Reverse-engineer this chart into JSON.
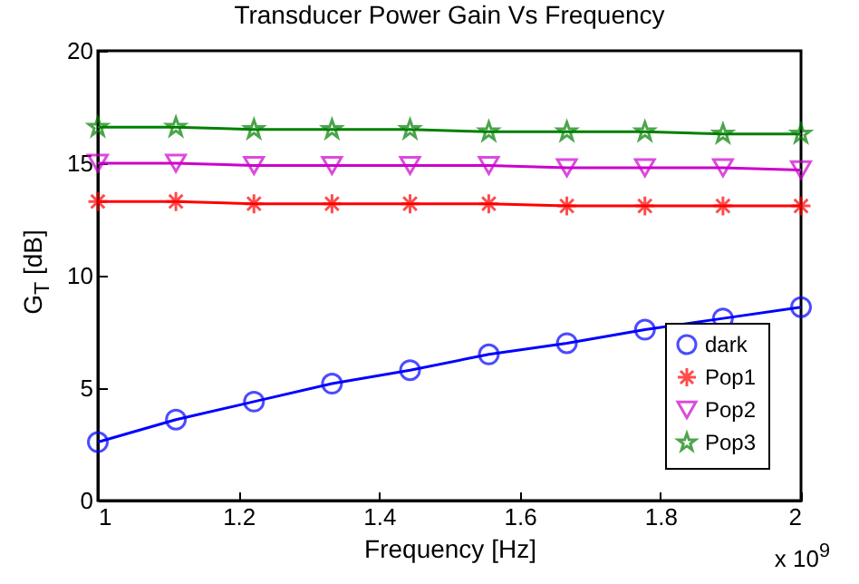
{
  "chart_data": {
    "type": "line",
    "title": "Transducer Power Gain Vs Frequency",
    "xlabel": "Frequency [Hz]",
    "ylabel": "G$_{T}$ [dB]",
    "annotations": [
      "x 10$^{9}$"
    ],
    "x": [
      1,
      1.111,
      1.222,
      1.333,
      1.444,
      1.556,
      1.667,
      1.778,
      1.889,
      2
    ],
    "series": [
      {
        "name": "dark",
        "color": "#0000ff",
        "marker": "circle",
        "values": [
          2.6,
          3.6,
          4.4,
          5.2,
          5.8,
          6.5,
          7.0,
          7.6,
          8.1,
          8.6
        ]
      },
      {
        "name": "Pop1",
        "color": "#ff0000",
        "marker": "cross",
        "values": [
          13.3,
          13.3,
          13.2,
          13.2,
          13.2,
          13.2,
          13.1,
          13.1,
          13.1,
          13.1
        ]
      },
      {
        "name": "Pop2",
        "color": "#cc00cc",
        "marker": "triangle",
        "values": [
          15.0,
          15.0,
          14.9,
          14.9,
          14.9,
          14.9,
          14.8,
          14.8,
          14.8,
          14.7
        ]
      },
      {
        "name": "Pop3",
        "color": "#008000",
        "marker": "star",
        "values": [
          16.6,
          16.6,
          16.5,
          16.5,
          16.5,
          16.4,
          16.4,
          16.4,
          16.3,
          16.3
        ]
      }
    ],
    "xlim": [
      1,
      2
    ],
    "xticks": [
      1,
      1.2,
      1.4,
      1.6,
      1.8,
      2
    ],
    "ylim": [
      0,
      20
    ],
    "yticks": [
      0,
      5,
      10,
      15,
      20
    ],
    "grid": false,
    "legend": "bottom right",
    "line_style": "solid"
  }
}
